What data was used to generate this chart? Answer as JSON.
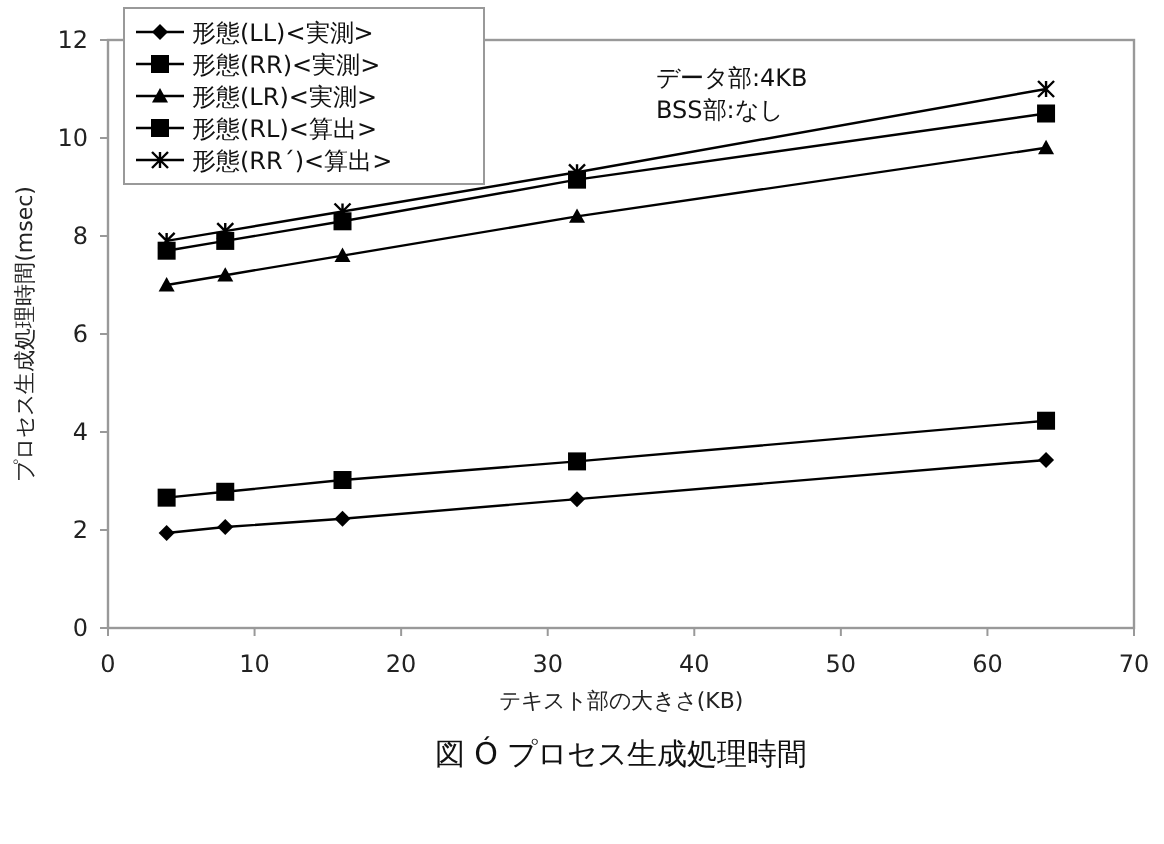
{
  "chart_data": {
    "type": "line",
    "title": "図 Ó プロセス生成処理時間",
    "xlabel": "テキスト部の大きさ(KB)",
    "ylabel": "プロセス生成処理時間(msec)",
    "x": [
      4,
      8,
      16,
      32,
      64
    ],
    "series": [
      {
        "name": "形態(LL)<実測>",
        "color": "#000000",
        "marker": "diamond",
        "values": [
          1.94,
          2.06,
          2.23,
          2.63,
          3.43
        ]
      },
      {
        "name": "形態(RR)<実測>",
        "color": "#000000",
        "marker": "square",
        "values": [
          2.66,
          2.78,
          3.02,
          3.4,
          4.23
        ]
      },
      {
        "name": "形態(LR)<実測>",
        "color": "#000000",
        "marker": "triangle",
        "values": [
          7.0,
          7.2,
          7.6,
          8.4,
          9.8
        ]
      },
      {
        "name": "形態(RL)<算出>",
        "color": "#000000",
        "marker": "square",
        "values": [
          7.7,
          7.9,
          8.3,
          9.15,
          10.5
        ]
      },
      {
        "name": "形態(RR´)<算出>",
        "color": "#000000",
        "marker": "cross",
        "values": [
          7.9,
          8.1,
          8.5,
          9.3,
          11.0
        ]
      }
    ],
    "annotations": [
      "データ部:4KB",
      "BSS部:なし"
    ],
    "xlim": [
      0,
      70
    ],
    "xticks": [
      0,
      10,
      20,
      30,
      40,
      50,
      60,
      70
    ],
    "ylim": [
      0,
      12
    ],
    "yticks": [
      0,
      2,
      4,
      6,
      8,
      10,
      12
    ],
    "grid": false,
    "legend": "top left",
    "line_style": "solid"
  }
}
